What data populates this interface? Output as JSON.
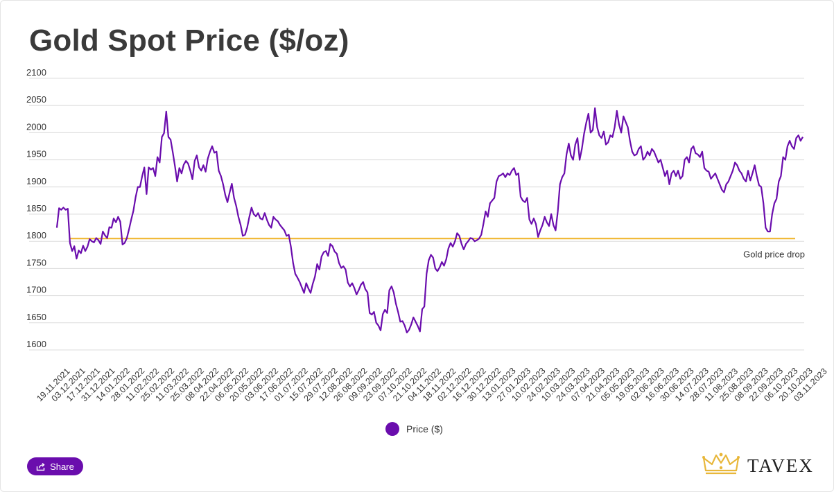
{
  "header": {
    "title": "Gold Spot Price ($/oz)"
  },
  "legend": {
    "label": "Price ($)"
  },
  "share": {
    "label": "Share",
    "icon": "share-icon"
  },
  "logo": {
    "text": "TAVEX",
    "icon": "crown-icon"
  },
  "colors": {
    "accent": "#6a0dad",
    "reference": "#f0b429",
    "grid": "#dddddd",
    "text": "#333333"
  },
  "chart_data": {
    "type": "line",
    "ylim": [
      1600,
      2100
    ],
    "yticks": [
      1600,
      1650,
      1700,
      1750,
      1800,
      1850,
      1900,
      1950,
      2000,
      2050,
      2100
    ],
    "x_tick_labels": [
      "19.11.2021",
      "03.12.2021",
      "17.12.2021",
      "31.12.2021",
      "14.01.2022",
      "28.01.2022",
      "11.02.2022",
      "25.02.2022",
      "11.03.2022",
      "25.03.2022",
      "08.04.2022",
      "22.04.2022",
      "06.05.2022",
      "20.05.2022",
      "03.06.2022",
      "17.06.2022",
      "01.07.2022",
      "15.07.2022",
      "29.07.2022",
      "12.08.2022",
      "26.08.2022",
      "09.09.2022",
      "23.09.2022",
      "07.10.2022",
      "21.10.2022",
      "04.11.2022",
      "18.11.2022",
      "02.12.2022",
      "16.12.2022",
      "30.12.2022",
      "13.01.2023",
      "27.01.2023",
      "10.02.2023",
      "24.02.2023",
      "10.03.2023",
      "24.03.2023",
      "07.04.2023",
      "21.04.2023",
      "05.05.2023",
      "19.05.2023",
      "02.06.2023",
      "16.06.2023",
      "30.06.2023",
      "14.07.2023",
      "28.07.2023",
      "11.08.2023",
      "25.08.2023",
      "08.09.2023",
      "22.09.2023",
      "06.10.2023",
      "20.10.2023",
      "03.11.2023"
    ],
    "reference_line": {
      "value": 1805,
      "label": "Gold price drop"
    },
    "series": [
      {
        "name": "Price ($)",
        "color": "#6a0dad",
        "values": [
          1825,
          1861,
          1858,
          1862,
          1858,
          1860,
          1797,
          1782,
          1791,
          1768,
          1783,
          1778,
          1792,
          1782,
          1790,
          1804,
          1800,
          1798,
          1806,
          1802,
          1795,
          1818,
          1811,
          1806,
          1826,
          1825,
          1842,
          1835,
          1845,
          1836,
          1794,
          1797,
          1806,
          1822,
          1840,
          1856,
          1881,
          1900,
          1900,
          1920,
          1936,
          1887,
          1936,
          1932,
          1935,
          1920,
          1955,
          1945,
          1992,
          1999,
          2039,
          1992,
          1987,
          1964,
          1938,
          1910,
          1935,
          1925,
          1941,
          1948,
          1943,
          1930,
          1914,
          1948,
          1958,
          1936,
          1930,
          1940,
          1928,
          1952,
          1965,
          1975,
          1963,
          1965,
          1930,
          1920,
          1905,
          1885,
          1872,
          1890,
          1906,
          1880,
          1865,
          1845,
          1830,
          1810,
          1812,
          1825,
          1845,
          1862,
          1850,
          1846,
          1852,
          1842,
          1840,
          1852,
          1840,
          1830,
          1825,
          1845,
          1840,
          1837,
          1830,
          1825,
          1820,
          1810,
          1812,
          1790,
          1760,
          1740,
          1733,
          1725,
          1715,
          1705,
          1723,
          1713,
          1705,
          1722,
          1735,
          1758,
          1748,
          1772,
          1780,
          1782,
          1773,
          1795,
          1791,
          1781,
          1777,
          1760,
          1751,
          1754,
          1748,
          1724,
          1717,
          1723,
          1714,
          1702,
          1710,
          1720,
          1725,
          1712,
          1706,
          1668,
          1665,
          1670,
          1650,
          1645,
          1636,
          1666,
          1674,
          1668,
          1710,
          1717,
          1706,
          1685,
          1670,
          1652,
          1653,
          1645,
          1632,
          1637,
          1647,
          1660,
          1652,
          1644,
          1634,
          1675,
          1680,
          1740,
          1765,
          1775,
          1770,
          1750,
          1745,
          1752,
          1762,
          1755,
          1767,
          1787,
          1797,
          1790,
          1800,
          1815,
          1810,
          1795,
          1785,
          1795,
          1800,
          1806,
          1805,
          1800,
          1802,
          1805,
          1812,
          1832,
          1855,
          1845,
          1870,
          1875,
          1880,
          1910,
          1920,
          1922,
          1925,
          1918,
          1925,
          1922,
          1930,
          1935,
          1922,
          1925,
          1882,
          1875,
          1872,
          1880,
          1840,
          1832,
          1842,
          1832,
          1808,
          1820,
          1830,
          1845,
          1835,
          1828,
          1850,
          1830,
          1820,
          1855,
          1905,
          1918,
          1925,
          1960,
          1980,
          1958,
          1950,
          1978,
          1990,
          1950,
          1970,
          1998,
          2018,
          2035,
          2000,
          2005,
          2045,
          2010,
          1995,
          1990,
          2002,
          1978,
          1982,
          1995,
          1992,
          2010,
          2040,
          2015,
          2000,
          2030,
          2020,
          2010,
          1985,
          1965,
          1958,
          1960,
          1970,
          1975,
          1950,
          1955,
          1965,
          1958,
          1970,
          1965,
          1955,
          1945,
          1950,
          1935,
          1920,
          1930,
          1905,
          1925,
          1930,
          1920,
          1930,
          1915,
          1920,
          1950,
          1955,
          1945,
          1970,
          1975,
          1962,
          1960,
          1955,
          1965,
          1935,
          1930,
          1928,
          1915,
          1920,
          1925,
          1915,
          1905,
          1895,
          1890,
          1905,
          1910,
          1920,
          1930,
          1945,
          1940,
          1930,
          1925,
          1915,
          1910,
          1930,
          1912,
          1925,
          1940,
          1920,
          1903,
          1900,
          1870,
          1825,
          1818,
          1818,
          1850,
          1870,
          1878,
          1910,
          1920,
          1955,
          1950,
          1975,
          1985,
          1975,
          1970,
          1990,
          1995,
          1985,
          1992
        ]
      }
    ]
  }
}
